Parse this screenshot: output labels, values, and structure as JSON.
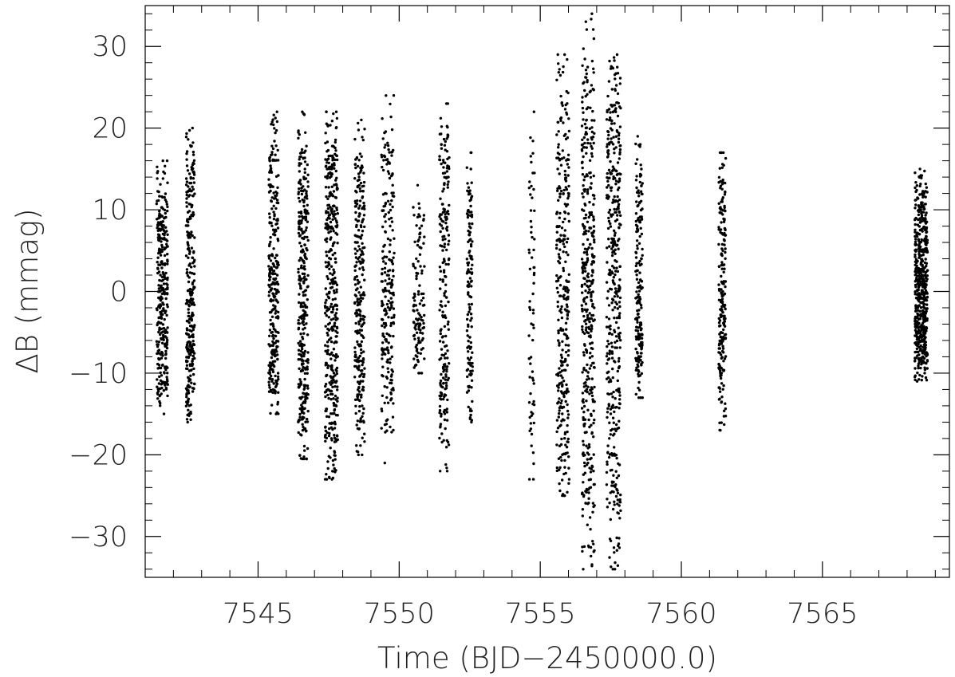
{
  "chart_data": {
    "type": "scatter",
    "xlabel": "Time (BJD−2450000.0)",
    "ylabel": "ΔB (mmag)",
    "xlim": [
      7541.0,
      7569.5
    ],
    "ylim": [
      -35,
      35
    ],
    "x_ticks": [
      7545,
      7550,
      7555,
      7560,
      7565
    ],
    "x_tick_labels": [
      "7545",
      "7550",
      "7555",
      "7560",
      "7565"
    ],
    "x_minor_step": 1,
    "y_ticks": [
      -30,
      -20,
      -10,
      0,
      10,
      20,
      30
    ],
    "y_tick_labels": [
      "−30",
      "−20",
      "−10",
      "0",
      "10",
      "20",
      "30"
    ],
    "y_minor_step": 2,
    "grid": false,
    "marker_color": "#000000",
    "clusters": [
      {
        "center": 7541.6,
        "width": 0.4,
        "n": 320,
        "sd": 5.5,
        "ymin": -15,
        "ymax": 16
      },
      {
        "center": 7542.6,
        "width": 0.3,
        "n": 300,
        "sd": 6.5,
        "ymin": -16,
        "ymax": 20
      },
      {
        "center": 7545.55,
        "width": 0.35,
        "n": 300,
        "sd": 6.5,
        "ymin": -15,
        "ymax": 22
      },
      {
        "center": 7546.6,
        "width": 0.35,
        "n": 340,
        "sd": 9.0,
        "ymin": -20.5,
        "ymax": 22
      },
      {
        "center": 7547.6,
        "width": 0.45,
        "n": 420,
        "sd": 10.0,
        "ymin": -23,
        "ymax": 22
      },
      {
        "center": 7548.6,
        "width": 0.35,
        "n": 280,
        "sd": 8.0,
        "ymin": -20,
        "ymax": 21
      },
      {
        "center": 7549.6,
        "width": 0.45,
        "n": 240,
        "sd": 6.5,
        "ymin": -21,
        "ymax": 24
      },
      {
        "center": 7550.7,
        "width": 0.4,
        "n": 120,
        "sd": 4.5,
        "ymin": -10,
        "ymax": 13
      },
      {
        "center": 7551.6,
        "width": 0.35,
        "n": 220,
        "sd": 8.0,
        "ymin": -22,
        "ymax": 23
      },
      {
        "center": 7552.5,
        "width": 0.2,
        "n": 140,
        "sd": 7.5,
        "ymin": -16,
        "ymax": 17
      },
      {
        "center": 7554.7,
        "width": 0.2,
        "n": 70,
        "sd": 9.0,
        "ymin": -23,
        "ymax": 22
      },
      {
        "center": 7555.8,
        "width": 0.45,
        "n": 320,
        "sd": 10.0,
        "ymin": -25,
        "ymax": 29
      },
      {
        "center": 7556.7,
        "width": 0.45,
        "n": 420,
        "sd": 11.0,
        "ymin": -34,
        "ymax": 34
      },
      {
        "center": 7557.6,
        "width": 0.5,
        "n": 430,
        "sd": 10.5,
        "ymin": -34,
        "ymax": 29
      },
      {
        "center": 7558.5,
        "width": 0.25,
        "n": 200,
        "sd": 6.5,
        "ymin": -13,
        "ymax": 19
      },
      {
        "center": 7561.45,
        "width": 0.25,
        "n": 220,
        "sd": 7.0,
        "ymin": -17,
        "ymax": 17
      },
      {
        "center": 7568.5,
        "width": 0.45,
        "n": 560,
        "sd": 4.2,
        "ymin": -11,
        "ymax": 15
      }
    ]
  }
}
